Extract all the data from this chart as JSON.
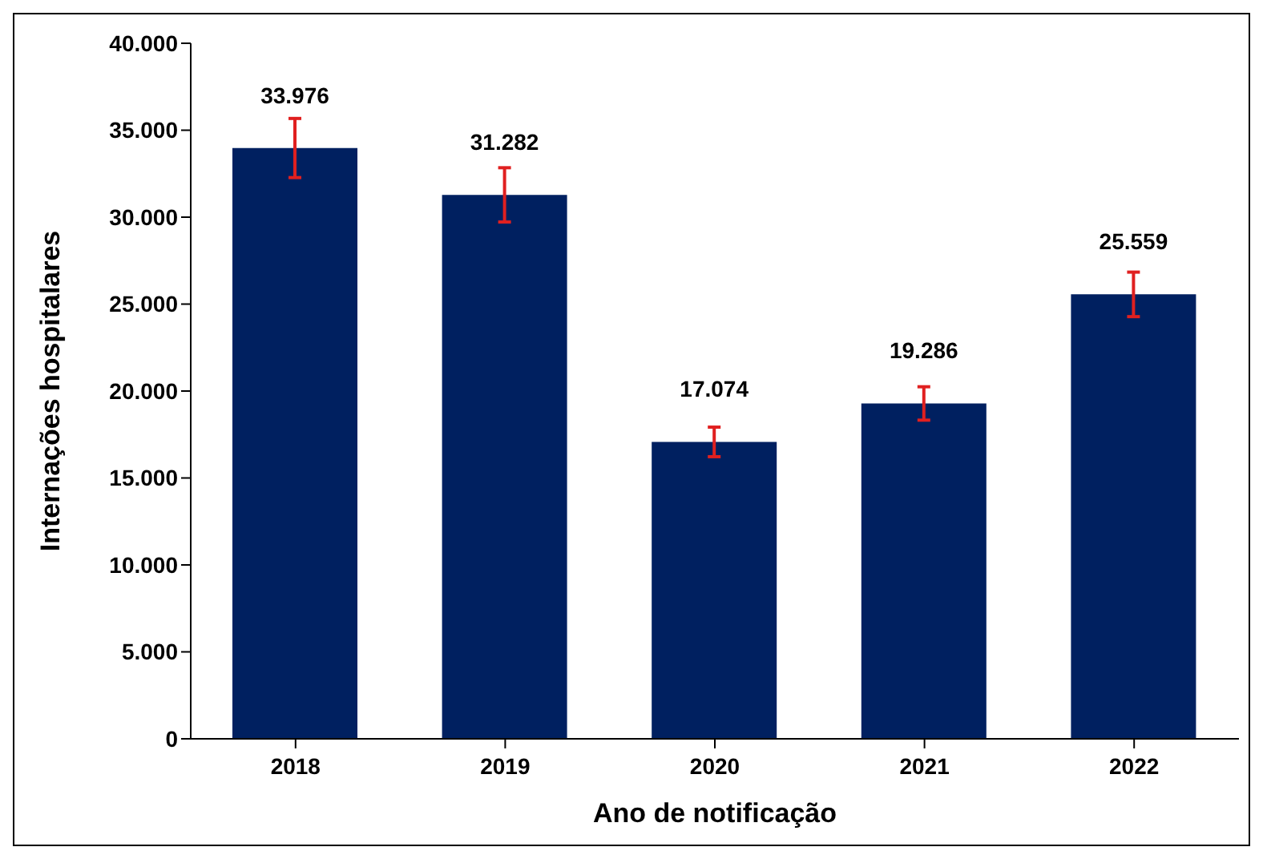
{
  "chart_data": {
    "type": "bar",
    "xlabel": "Ano de notificação",
    "ylabel": "Internações hospitalares",
    "categories": [
      "2018",
      "2019",
      "2020",
      "2021",
      "2022"
    ],
    "values": [
      33976,
      31282,
      17074,
      19286,
      25559
    ],
    "value_labels": [
      "33.976",
      "31.282",
      "17.074",
      "19.286",
      "25.559"
    ],
    "errors": [
      1700,
      1560,
      850,
      960,
      1280
    ],
    "color": "#002060",
    "ylim": [
      0,
      40000
    ],
    "yticks": [
      {
        "value": 0,
        "label": "0"
      },
      {
        "value": 5000,
        "label": "5.000"
      },
      {
        "value": 10000,
        "label": "10.000"
      },
      {
        "value": 15000,
        "label": "15.000"
      },
      {
        "value": 20000,
        "label": "20.000"
      },
      {
        "value": 25000,
        "label": "25.000"
      },
      {
        "value": 30000,
        "label": "30.000"
      },
      {
        "value": 35000,
        "label": "35.000"
      },
      {
        "value": 40000,
        "label": "40.000"
      }
    ],
    "grid": false,
    "legend": false
  }
}
